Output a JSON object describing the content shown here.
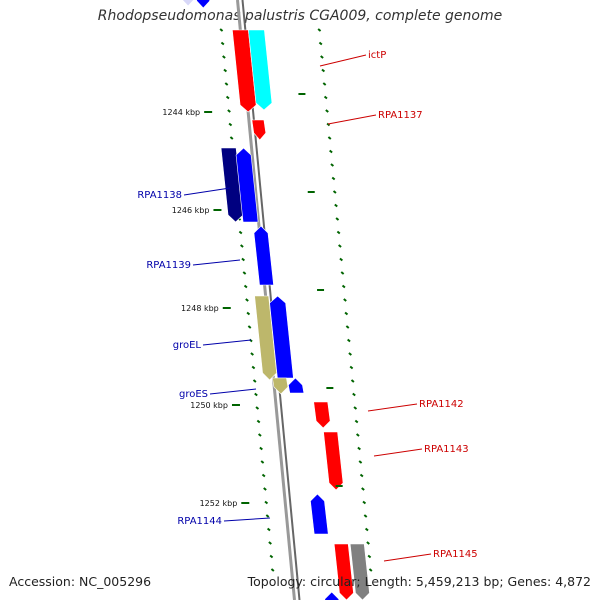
{
  "title": "Rhodopseudomonas palustris CGA009, complete genome",
  "accession": "Accession: NC_005296",
  "summary": "Topology: circular; Length: 5,459,213 bp; Genes: 4,872",
  "colors": {
    "red": "#ff0000",
    "cyan": "#00ffff",
    "blue": "#0000ff",
    "navy": "#000080",
    "khaki": "#bdb76b",
    "gray": "#808080",
    "backbone": "#999999",
    "tick": "#006400",
    "label_red": "#cc0000",
    "label_blue": "#0000aa"
  },
  "tick_labels": [
    "1244 kbp",
    "1246 kbp",
    "1248 kbp",
    "1250 kbp",
    "1252 kbp"
  ],
  "gene_labels": [
    {
      "text": "ictP",
      "side": "right",
      "color": "red"
    },
    {
      "text": "RPA1137",
      "side": "right",
      "color": "red"
    },
    {
      "text": "RPA1138",
      "side": "left",
      "color": "blue"
    },
    {
      "text": "RPA1139",
      "side": "left",
      "color": "blue"
    },
    {
      "text": "groEL",
      "side": "left",
      "color": "blue"
    },
    {
      "text": "groES",
      "side": "left",
      "color": "blue"
    },
    {
      "text": "RPA1142",
      "side": "right",
      "color": "red"
    },
    {
      "text": "RPA1143",
      "side": "right",
      "color": "red"
    },
    {
      "text": "RPA1144",
      "side": "left",
      "color": "blue"
    },
    {
      "text": "RPA1145",
      "side": "right",
      "color": "red"
    }
  ]
}
